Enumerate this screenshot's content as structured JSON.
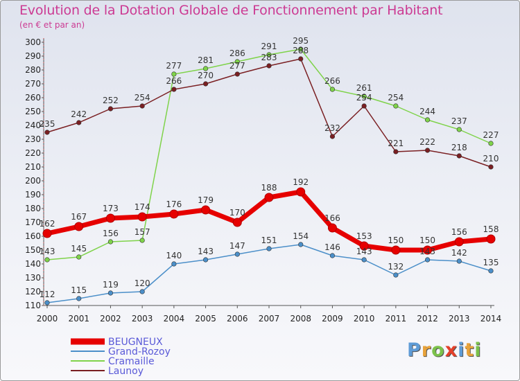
{
  "title": "Evolution de la Dotation Globale de Fonctionnement par Habitant",
  "subtitle": "(en € et par an)",
  "logo": {
    "text": "Proxiti",
    "letters": [
      {
        "ch": "P",
        "color": "#5e9bd6"
      },
      {
        "ch": "r",
        "color": "#e8a23a"
      },
      {
        "ch": "o",
        "color": "#7cc24b"
      },
      {
        "ch": "x",
        "color": "#e4402a"
      },
      {
        "ch": "i",
        "color": "#5e9bd6"
      },
      {
        "ch": "t",
        "color": "#e8a23a"
      },
      {
        "ch": "i",
        "color": "#7cc24b"
      }
    ]
  },
  "chart_data": {
    "type": "line",
    "x": [
      2000,
      2001,
      2002,
      2003,
      2004,
      2005,
      2006,
      2007,
      2008,
      2009,
      2010,
      2011,
      2012,
      2013,
      2014
    ],
    "ylim": [
      110,
      300
    ],
    "yticks": [
      110,
      120,
      130,
      140,
      150,
      160,
      170,
      180,
      190,
      200,
      210,
      220,
      230,
      240,
      250,
      260,
      270,
      280,
      290,
      300
    ],
    "grid": false,
    "legend_position": "bottom-left",
    "series": [
      {
        "name": "BEUGNEUX",
        "color": "#e60000",
        "width": 7,
        "values": [
          162,
          167,
          173,
          174,
          176,
          179,
          170,
          188,
          192,
          166,
          153,
          150,
          150,
          156,
          158
        ]
      },
      {
        "name": "Grand-Rozoy",
        "color": "#4b8fc9",
        "width": 1.5,
        "values": [
          112,
          115,
          119,
          120,
          140,
          143,
          147,
          151,
          154,
          146,
          143,
          132,
          143,
          142,
          135
        ]
      },
      {
        "name": "Cramaille",
        "color": "#7fd34a",
        "width": 1.5,
        "values": [
          143,
          145,
          156,
          157,
          277,
          281,
          286,
          291,
          295,
          266,
          261,
          254,
          244,
          237,
          227
        ]
      },
      {
        "name": "Launoy",
        "color": "#7a1f22",
        "width": 1.5,
        "values": [
          235,
          242,
          252,
          254,
          266,
          270,
          277,
          283,
          288,
          232,
          254,
          221,
          222,
          218,
          210
        ]
      }
    ]
  }
}
